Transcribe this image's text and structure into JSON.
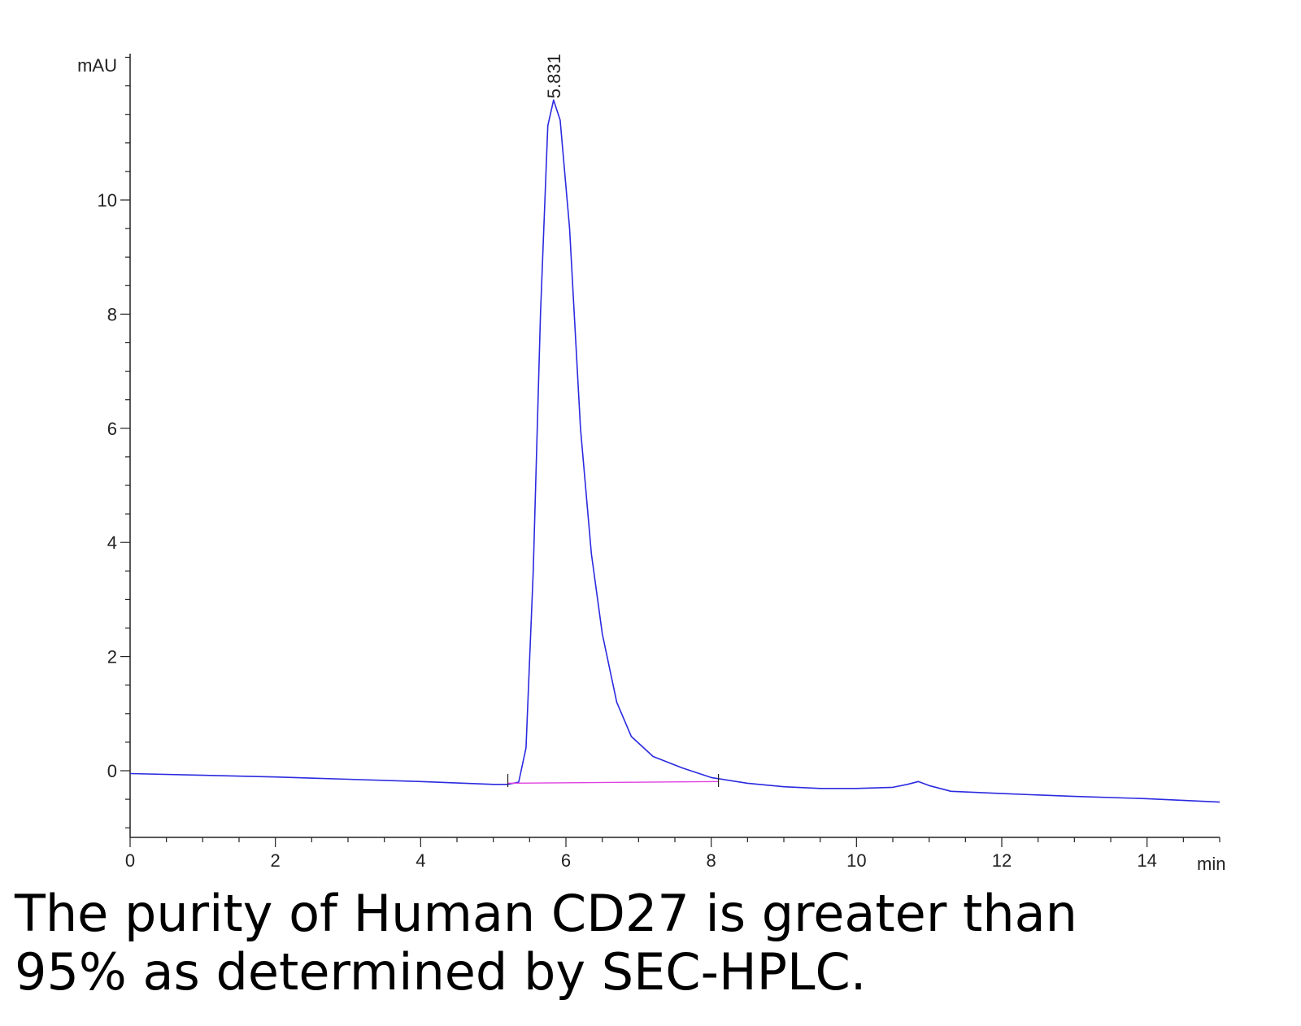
{
  "chart_data": {
    "type": "line",
    "y_unit_label": "mAU",
    "x_unit_label": "min",
    "xlim": [
      0,
      15
    ],
    "ylim": [
      -1.2,
      12.5
    ],
    "x_ticks": [
      0,
      2,
      4,
      6,
      8,
      10,
      12,
      14
    ],
    "y_ticks": [
      0,
      2,
      4,
      6,
      8,
      10
    ],
    "grid": false,
    "series": [
      {
        "color": "#2a2ae0",
        "points": [
          [
            0,
            -0.05
          ],
          [
            1,
            -0.08
          ],
          [
            2,
            -0.11
          ],
          [
            3,
            -0.15
          ],
          [
            4,
            -0.19
          ],
          [
            5,
            -0.24
          ],
          [
            5.2,
            -0.24
          ],
          [
            5.35,
            -0.2
          ],
          [
            5.45,
            0.4
          ],
          [
            5.55,
            3.5
          ],
          [
            5.65,
            8.0
          ],
          [
            5.75,
            11.3
          ],
          [
            5.83,
            11.75
          ],
          [
            5.92,
            11.4
          ],
          [
            6.05,
            9.5
          ],
          [
            6.2,
            6.0
          ],
          [
            6.35,
            3.8
          ],
          [
            6.5,
            2.4
          ],
          [
            6.7,
            1.2
          ],
          [
            6.9,
            0.6
          ],
          [
            7.2,
            0.25
          ],
          [
            7.6,
            0.05
          ],
          [
            8.0,
            -0.12
          ],
          [
            8.5,
            -0.22
          ],
          [
            9.0,
            -0.28
          ],
          [
            9.5,
            -0.31
          ],
          [
            10.0,
            -0.31
          ],
          [
            10.5,
            -0.29
          ],
          [
            10.7,
            -0.24
          ],
          [
            10.85,
            -0.19
          ],
          [
            11.0,
            -0.26
          ],
          [
            11.3,
            -0.36
          ],
          [
            12.0,
            -0.4
          ],
          [
            13.0,
            -0.45
          ],
          [
            14.0,
            -0.49
          ],
          [
            15.0,
            -0.55
          ]
        ]
      },
      {
        "color": "#e040e0",
        "points": [
          [
            5.2,
            -0.22
          ],
          [
            8.1,
            -0.19
          ]
        ]
      }
    ],
    "annotations": [
      {
        "text": "5.831",
        "x": 5.831,
        "y": 11.75
      }
    ],
    "integration_marks": [
      5.2,
      8.1
    ]
  },
  "caption": {
    "line1": "The purity of Human CD27 is greater than",
    "line2": "95% as determined by SEC-HPLC."
  }
}
